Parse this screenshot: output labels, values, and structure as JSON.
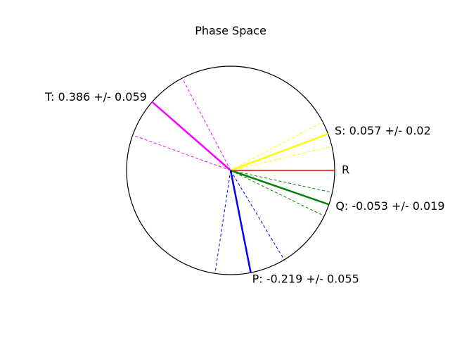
{
  "chart_data": {
    "type": "polar-phase",
    "title": "Phase Space",
    "angle_unit": "turns (fraction of full circle)",
    "reference": {
      "name": "R",
      "phase": 0.0,
      "color": "#ff0000"
    },
    "series": [
      {
        "name": "T",
        "phase": 0.386,
        "uncertainty": 0.059,
        "color": "#ff00ff",
        "label": "T: 0.386 +/- 0.059"
      },
      {
        "name": "S",
        "phase": 0.057,
        "uncertainty": 0.02,
        "color": "#ffff00",
        "label": "S: 0.057 +/- 0.02"
      },
      {
        "name": "Q",
        "phase": -0.053,
        "uncertainty": 0.019,
        "color": "#008000",
        "label": "Q: -0.053 +/- 0.019"
      },
      {
        "name": "P",
        "phase": -0.219,
        "uncertainty": 0.055,
        "color": "#0000ff",
        "label": "P: -0.219 +/- 0.055"
      }
    ]
  }
}
